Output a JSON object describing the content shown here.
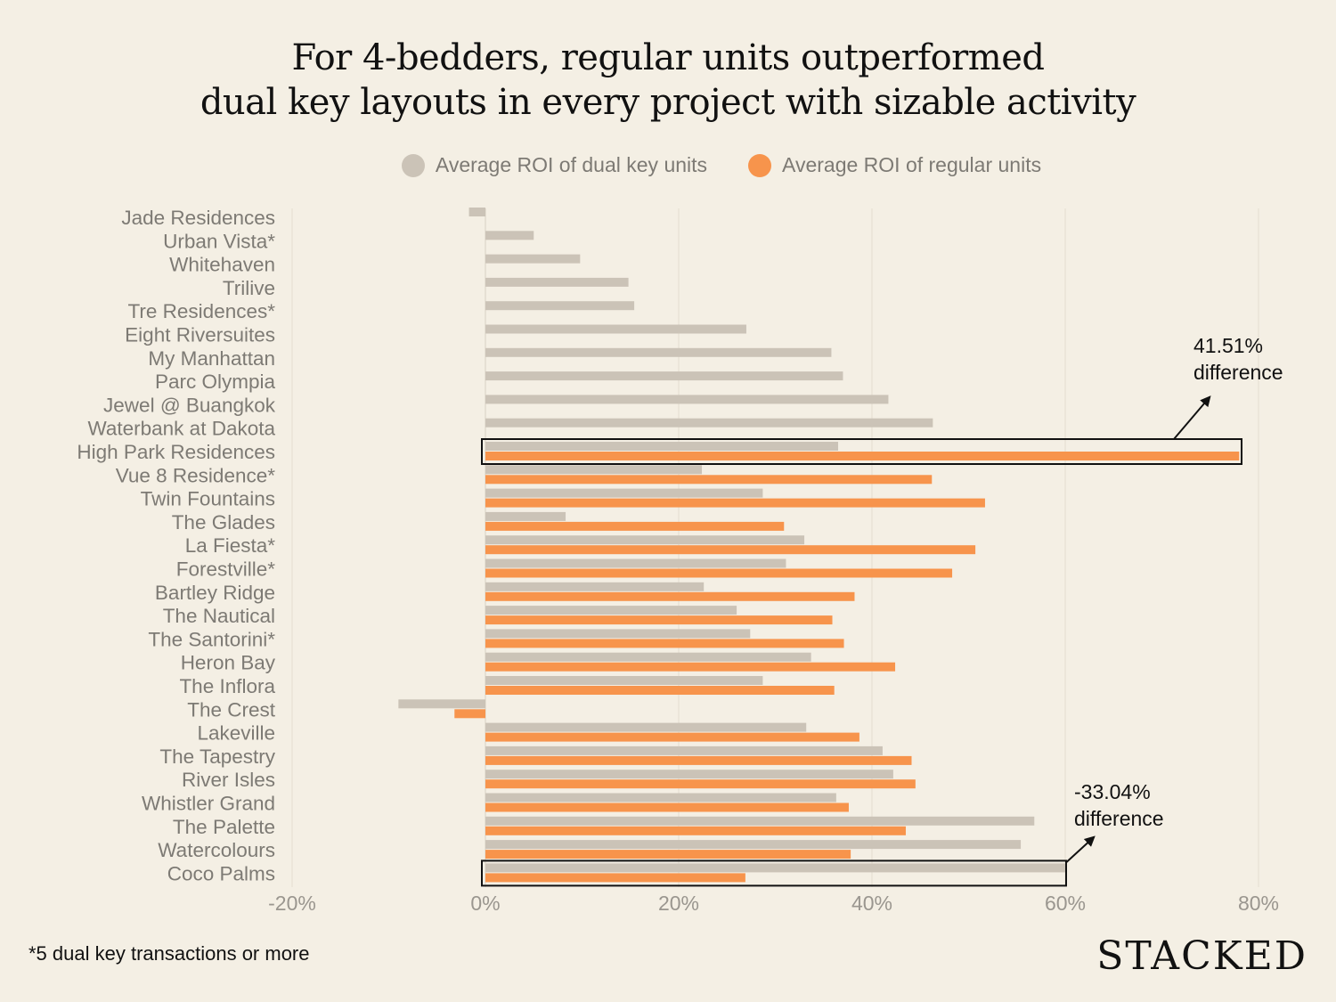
{
  "title_line1": "For 4-bedders, regular units outperformed",
  "title_line2": "dual key layouts in every project with sizable activity",
  "legend": {
    "dual": "Average ROI of dual key units",
    "regular": "Average ROI of regular units"
  },
  "footnote": "*5 dual key transactions or more",
  "brand": "STACKED",
  "colors": {
    "dual": "#cbc3b7",
    "regular": "#f7944c",
    "background": "#f4efe4"
  },
  "chart_data": {
    "type": "bar",
    "orientation": "horizontal",
    "title": "For 4-bedders, regular units outperformed dual key layouts in every project with sizable activity",
    "xlim": [
      -20,
      80
    ],
    "xticks": [
      "-20%",
      "0%",
      "20%",
      "40%",
      "60%",
      "80%"
    ],
    "xtick_values": [
      -20,
      0,
      20,
      40,
      60,
      80
    ],
    "categories": [
      "Jade Residences",
      "Urban Vista*",
      "Whitehaven",
      "Trilive",
      "Tre Residences*",
      "Eight Riversuites",
      "My Manhattan",
      "Parc Olympia",
      "Jewel @ Buangkok",
      "Waterbank at Dakota",
      "High Park Residences",
      "Vue 8 Residence*",
      "Twin Fountains",
      "The Glades",
      "La Fiesta*",
      "Forestville*",
      "Bartley Ridge",
      "The Nautical",
      "The Santorini*",
      "Heron Bay",
      "The Inflora",
      "The Crest",
      "Lakeville",
      "The Tapestry",
      "River Isles",
      "Whistler Grand",
      "The Palette",
      "Watercolours",
      "Coco Palms"
    ],
    "series": [
      {
        "name": "Average ROI of dual key units",
        "values": [
          -1.7,
          5.0,
          9.8,
          14.8,
          15.4,
          27.0,
          35.8,
          37.0,
          41.7,
          46.3,
          36.5,
          22.4,
          28.7,
          8.3,
          33.0,
          31.1,
          22.6,
          26.0,
          27.4,
          33.7,
          28.7,
          -9.0,
          33.2,
          41.1,
          42.2,
          36.3,
          56.8,
          55.4,
          60.0
        ]
      },
      {
        "name": "Average ROI of regular units",
        "values": [
          null,
          null,
          null,
          null,
          null,
          null,
          null,
          null,
          null,
          null,
          78.0,
          46.2,
          51.7,
          30.9,
          50.7,
          48.3,
          38.2,
          35.9,
          37.1,
          42.4,
          36.1,
          -3.2,
          38.7,
          44.1,
          44.5,
          37.6,
          43.5,
          37.8,
          26.9
        ]
      }
    ],
    "highlights": [
      {
        "category": "High Park Residences",
        "label_value": "41.51%",
        "label_text": "difference"
      },
      {
        "category": "Coco Palms",
        "label_value": "-33.04%",
        "label_text": "difference"
      }
    ]
  }
}
